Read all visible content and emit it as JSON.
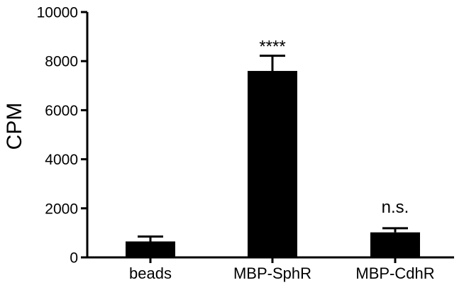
{
  "chart_data": {
    "type": "bar",
    "title": "",
    "xlabel": "",
    "ylabel": "CPM",
    "ylim": [
      0,
      10000
    ],
    "yticks": [
      0,
      2000,
      4000,
      6000,
      8000,
      10000
    ],
    "ytick_labels": [
      "0",
      "2000",
      "4000",
      "6000",
      "8000",
      "10000"
    ],
    "categories": [
      "beads",
      "MBP-SphR",
      "MBP-CdhR"
    ],
    "values": [
      650,
      7600,
      1020
    ],
    "errors": [
      200,
      620,
      170
    ],
    "annotations": [
      "",
      "****",
      "n.s."
    ],
    "bar_color": "#000000",
    "grid": false,
    "legend": "none"
  }
}
